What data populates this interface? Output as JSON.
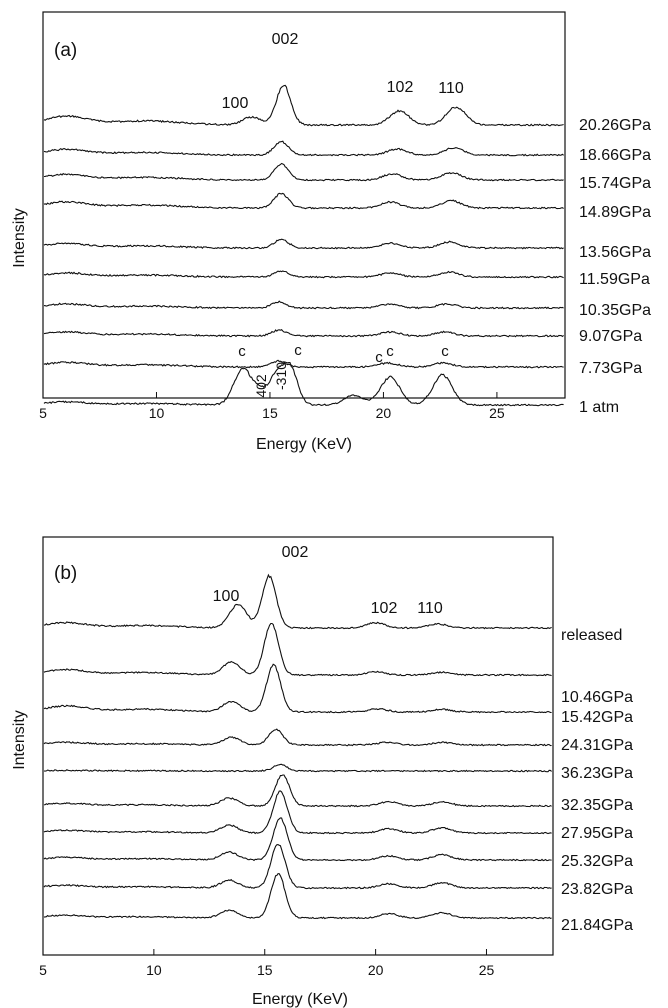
{
  "chart_data": [
    {
      "type": "line",
      "panel_label": "(a)",
      "xlabel": "Energy (KeV)",
      "ylabel": "Intensity",
      "xlim": [
        5,
        28
      ],
      "x_ticks": [
        "5",
        "10",
        "15",
        "20",
        "25"
      ],
      "peak_labels": [
        "100",
        "002",
        "102",
        "110"
      ],
      "ambient_peak_labels": [
        "c",
        "c",
        "c",
        "c",
        "c",
        "c",
        "402",
        "-310"
      ],
      "series": [
        {
          "name": "20.26GPa",
          "baseline": 0.85,
          "amplitude": 1.0,
          "peaks": [
            [
              14.2,
              0.2
            ],
            [
              15.6,
              1.0
            ],
            [
              20.7,
              0.35
            ],
            [
              23.2,
              0.45
            ]
          ]
        },
        {
          "name": "18.66GPa",
          "baseline": 0.55,
          "amplitude": 0.6,
          "peaks": [
            [
              15.5,
              0.55
            ],
            [
              20.6,
              0.25
            ],
            [
              23.1,
              0.3
            ]
          ]
        },
        {
          "name": "15.74GPa",
          "baseline": 0.55,
          "amplitude": 0.6,
          "peaks": [
            [
              15.5,
              0.65
            ],
            [
              20.4,
              0.25
            ],
            [
              23.0,
              0.3
            ]
          ]
        },
        {
          "name": "14.89GPa",
          "baseline": 0.6,
          "amplitude": 0.6,
          "peaks": [
            [
              15.5,
              0.6
            ],
            [
              20.3,
              0.25
            ],
            [
              23.0,
              0.3
            ]
          ]
        },
        {
          "name": "13.56GPa",
          "baseline": 0.45,
          "amplitude": 0.6,
          "peaks": [
            [
              15.5,
              0.35
            ],
            [
              20.3,
              0.2
            ],
            [
              22.9,
              0.25
            ]
          ]
        },
        {
          "name": "11.59GPa",
          "baseline": 0.4,
          "amplitude": 0.5,
          "peaks": [
            [
              15.5,
              0.3
            ],
            [
              20.3,
              0.2
            ],
            [
              22.9,
              0.25
            ]
          ]
        },
        {
          "name": "10.35GPa",
          "baseline": 0.4,
          "amplitude": 0.5,
          "peaks": [
            [
              15.4,
              0.3
            ],
            [
              20.3,
              0.2
            ],
            [
              22.8,
              0.2
            ]
          ]
        },
        {
          "name": "9.07GPa",
          "baseline": 0.4,
          "amplitude": 0.5,
          "peaks": [
            [
              15.4,
              0.3
            ],
            [
              20.3,
              0.2
            ],
            [
              22.7,
              0.2
            ]
          ]
        },
        {
          "name": "7.73GPa",
          "baseline": 0.45,
          "amplitude": 0.5,
          "peaks": [
            [
              15.4,
              0.3
            ],
            [
              20.2,
              0.2
            ],
            [
              22.6,
              0.2
            ]
          ]
        },
        {
          "name": "1 atm",
          "baseline": 0.3,
          "amplitude": 1.0,
          "peaks": [
            [
              13.8,
              0.9
            ],
            [
              14.6,
              0.3
            ],
            [
              15.3,
              0.7
            ],
            [
              15.9,
              0.9
            ],
            [
              18.7,
              0.25
            ],
            [
              20.3,
              0.7
            ],
            [
              22.6,
              0.75
            ]
          ]
        }
      ]
    },
    {
      "type": "line",
      "panel_label": "(b)",
      "xlabel": "Energy (KeV)",
      "ylabel": "Intensity",
      "xlim": [
        5,
        28
      ],
      "x_ticks": [
        "5",
        "10",
        "15",
        "20",
        "25"
      ],
      "peak_labels": [
        "100",
        "002",
        "102",
        "110"
      ],
      "series": [
        {
          "name": "released",
          "baseline": 0.4,
          "amplitude": 1.0,
          "peaks": [
            [
              13.8,
              0.45
            ],
            [
              15.2,
              1.0
            ],
            [
              20.0,
              0.1
            ],
            [
              22.8,
              0.08
            ]
          ]
        },
        {
          "name": "10.46GPa",
          "baseline": 0.4,
          "amplitude": 1.0,
          "peaks": [
            [
              13.5,
              0.25
            ],
            [
              15.3,
              1.0
            ],
            [
              20.0,
              0.06
            ],
            [
              23.0,
              0.05
            ]
          ]
        },
        {
          "name": "15.42GPa",
          "baseline": 0.45,
          "amplitude": 1.0,
          "peaks": [
            [
              13.5,
              0.2
            ],
            [
              15.4,
              0.9
            ],
            [
              20.1,
              0.06
            ],
            [
              23.0,
              0.05
            ]
          ]
        },
        {
          "name": "24.31GPa",
          "baseline": 0.2,
          "amplitude": 1.0,
          "peaks": [
            [
              13.5,
              0.15
            ],
            [
              15.5,
              0.3
            ],
            [
              20.5,
              0.05
            ],
            [
              23.0,
              0.05
            ]
          ]
        },
        {
          "name": "36.23GPa",
          "baseline": 0.05,
          "amplitude": 1.0,
          "peaks": [
            [
              15.7,
              0.12
            ]
          ]
        },
        {
          "name": "32.35GPa",
          "baseline": 0.2,
          "amplitude": 1.0,
          "peaks": [
            [
              13.4,
              0.15
            ],
            [
              15.8,
              0.6
            ],
            [
              20.6,
              0.08
            ],
            [
              23.0,
              0.08
            ]
          ]
        },
        {
          "name": "27.95GPa",
          "baseline": 0.2,
          "amplitude": 1.0,
          "peaks": [
            [
              13.4,
              0.15
            ],
            [
              15.7,
              0.8
            ],
            [
              20.6,
              0.08
            ],
            [
              23.0,
              0.1
            ]
          ]
        },
        {
          "name": "25.32GPa",
          "baseline": 0.2,
          "amplitude": 1.0,
          "peaks": [
            [
              13.4,
              0.15
            ],
            [
              15.7,
              0.8
            ],
            [
              20.6,
              0.08
            ],
            [
              23.0,
              0.1
            ]
          ]
        },
        {
          "name": "23.82GPa",
          "baseline": 0.2,
          "amplitude": 1.0,
          "peaks": [
            [
              13.4,
              0.15
            ],
            [
              15.6,
              0.85
            ],
            [
              20.6,
              0.08
            ],
            [
              23.0,
              0.1
            ]
          ]
        },
        {
          "name": "21.84GPa",
          "baseline": 0.2,
          "amplitude": 1.0,
          "peaks": [
            [
              13.4,
              0.15
            ],
            [
              15.6,
              0.85
            ],
            [
              20.6,
              0.08
            ],
            [
              23.0,
              0.1
            ]
          ]
        }
      ]
    }
  ]
}
